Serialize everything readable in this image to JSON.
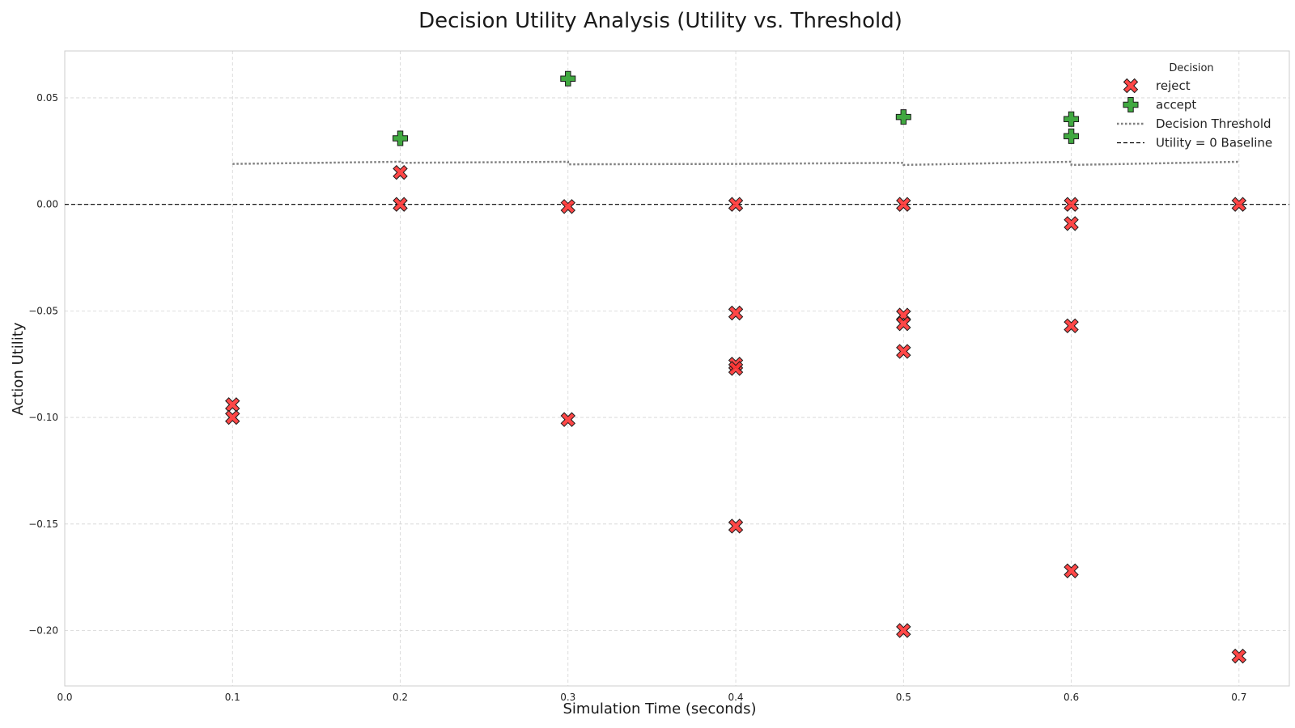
{
  "chart_data": {
    "type": "scatter",
    "title": "Decision Utility Analysis (Utility vs. Threshold)",
    "xlabel": "Simulation Time (seconds)",
    "ylabel": "Action Utility",
    "xlim": [
      0.0,
      0.73
    ],
    "ylim": [
      -0.226,
      0.072
    ],
    "x_ticks": [
      0.0,
      0.1,
      0.2,
      0.3,
      0.4,
      0.5,
      0.6,
      0.7
    ],
    "x_tick_labels": [
      "0.0",
      "0.1",
      "0.2",
      "0.3",
      "0.4",
      "0.5",
      "0.6",
      "0.7"
    ],
    "y_ticks": [
      0.05,
      0.0,
      -0.05,
      -0.1,
      -0.15,
      -0.2
    ],
    "y_tick_labels": [
      "0.05",
      "0.00",
      "−0.05",
      "−0.10",
      "−0.15",
      "−0.20"
    ],
    "grid": true,
    "legend": {
      "title": "Decision",
      "placement": "top-right",
      "entries": [
        "reject",
        "accept",
        "Decision Threshold",
        "Utility = 0 Baseline"
      ]
    },
    "series": [
      {
        "name": "reject",
        "marker": "x-filled",
        "color": "#ff3333",
        "edge_color": "#1a1a1a",
        "points": [
          [
            0.1,
            -0.094
          ],
          [
            0.1,
            -0.1
          ],
          [
            0.2,
            0.015
          ],
          [
            0.2,
            0.0
          ],
          [
            0.3,
            -0.001
          ],
          [
            0.3,
            -0.101
          ],
          [
            0.4,
            0.0
          ],
          [
            0.4,
            -0.051
          ],
          [
            0.4,
            -0.075
          ],
          [
            0.4,
            -0.077
          ],
          [
            0.4,
            -0.151
          ],
          [
            0.5,
            0.0
          ],
          [
            0.5,
            -0.052
          ],
          [
            0.5,
            -0.056
          ],
          [
            0.5,
            -0.069
          ],
          [
            0.5,
            -0.2
          ],
          [
            0.6,
            0.0
          ],
          [
            0.6,
            -0.009
          ],
          [
            0.6,
            -0.057
          ],
          [
            0.6,
            -0.172
          ],
          [
            0.7,
            0.0
          ],
          [
            0.7,
            -0.212
          ]
        ]
      },
      {
        "name": "accept",
        "marker": "plus-filled",
        "color": "#2ca02c",
        "edge_color": "#1a1a1a",
        "points": [
          [
            0.2,
            0.031
          ],
          [
            0.3,
            0.059
          ],
          [
            0.5,
            0.041
          ],
          [
            0.6,
            0.04
          ],
          [
            0.6,
            0.032
          ]
        ]
      }
    ],
    "threshold_line": {
      "name": "Decision Threshold",
      "style": "dotted",
      "color": "#808080",
      "x": [
        0.1,
        0.2,
        0.2001,
        0.3,
        0.3001,
        0.4,
        0.5,
        0.5001,
        0.6,
        0.6001,
        0.7
      ],
      "y": [
        0.019,
        0.02,
        0.0195,
        0.02,
        0.0188,
        0.019,
        0.0195,
        0.0185,
        0.02,
        0.0185,
        0.02
      ]
    },
    "baseline_line": {
      "name": "Utility = 0 Baseline",
      "style": "dashed",
      "color": "#000000",
      "y": 0.0
    }
  }
}
